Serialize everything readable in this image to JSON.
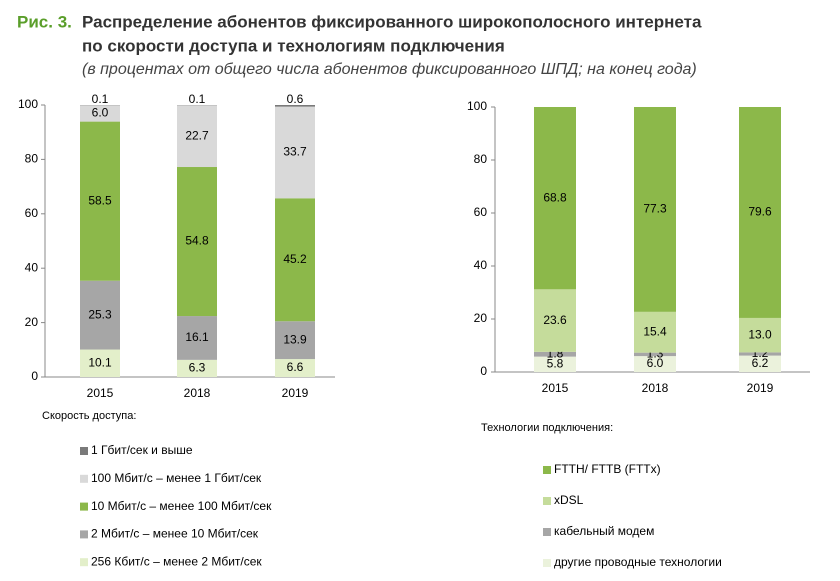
{
  "figure_label": "Рис. 3.",
  "title": [
    "Распределение абонентов фиксированного широкополосного интернета",
    "по скорости доступа и технологиям подключения"
  ],
  "subtitle": "(в процентах от общего числа абонентов фиксированного ШПД; на конец года)",
  "chart_data": [
    {
      "type": "stacked_bar",
      "legend_title": "Скорость доступа:",
      "categories": [
        "2015",
        "2018",
        "2019"
      ],
      "ylim": [
        0,
        100
      ],
      "yticks": [
        0,
        20,
        40,
        60,
        80,
        100
      ],
      "series": [
        {
          "name": "256 Кбит/с – менее 2 Мбит/сек",
          "color": "#e3efca",
          "values": [
            10.1,
            6.3,
            6.6
          ],
          "value_labels": [
            "10.1",
            "6.3",
            "6.6"
          ]
        },
        {
          "name": "2  Мбит/с – менее 10 Мбит/сек",
          "color": "#a6a6a6",
          "values": [
            25.3,
            16.1,
            13.9
          ],
          "value_labels": [
            "25.3",
            "16.1",
            "13.9"
          ]
        },
        {
          "name": "10 Мбит/с – менее 100 Мбит/сек",
          "color": "#8cb84a",
          "values": [
            58.5,
            54.8,
            45.2
          ],
          "value_labels": [
            "58.5",
            "54.8",
            "45.2"
          ]
        },
        {
          "name": "100 Мбит/с – менее 1 Гбит/сек",
          "color": "#d9d9d9",
          "values": [
            6.0,
            22.7,
            33.7
          ],
          "value_labels": [
            "6.0",
            "22.7",
            "33.7"
          ]
        },
        {
          "name": "1 Гбит/сек  и выше",
          "color": "#7a7a7a",
          "values": [
            0.1,
            0.1,
            0.6
          ],
          "value_labels": [
            "0.1",
            "0.1",
            "0.6"
          ]
        }
      ]
    },
    {
      "type": "stacked_bar",
      "legend_title": "Технологии подключения:",
      "categories": [
        "2015",
        "2018",
        "2019"
      ],
      "ylim": [
        0,
        100
      ],
      "yticks": [
        0,
        20,
        40,
        60,
        80,
        100
      ],
      "series": [
        {
          "name": "другие проводные технологии",
          "color": "#ebf2dc",
          "values": [
            5.8,
            6.0,
            6.2
          ],
          "value_labels": [
            "5.8",
            "6.0",
            "6.2"
          ]
        },
        {
          "name": "кабельный модем",
          "color": "#a6a6a6",
          "values": [
            1.8,
            1.3,
            1.2
          ],
          "value_labels": [
            "1.8",
            "1.3",
            "1.2"
          ]
        },
        {
          "name": "xDSL",
          "color": "#c5dc9b",
          "values": [
            23.6,
            15.4,
            13.0
          ],
          "value_labels": [
            "23.6",
            "15.4",
            "13.0"
          ]
        },
        {
          "name": "FTTH/ FTTB (FTTx)",
          "color": "#8cb84a",
          "values": [
            68.8,
            77.3,
            79.6
          ],
          "value_labels": [
            "68.8",
            "77.3",
            "79.6"
          ]
        }
      ]
    }
  ]
}
